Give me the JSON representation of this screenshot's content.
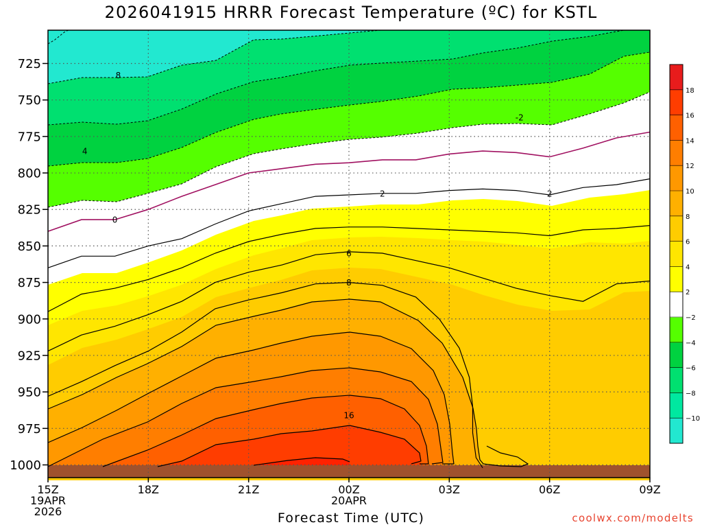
{
  "title": "2026041915 HRRR Forecast Temperature (ºC) for KSTL",
  "credit": "coolwx.com/modelts",
  "chart_data": {
    "type": "heatmap",
    "title": "2026041915 HRRR Forecast Temperature (ºC) for KSTL",
    "xlabel": "Forecast Time (UTC)",
    "ylabel": "",
    "xlim": [
      0,
      18
    ],
    "ylim": [
      1010,
      700
    ],
    "grid": true,
    "x_ticks": [
      {
        "x": 0,
        "lines": [
          "15Z",
          "19APR",
          "2026"
        ]
      },
      {
        "x": 3,
        "lines": [
          "18Z"
        ]
      },
      {
        "x": 6,
        "lines": [
          "21Z"
        ]
      },
      {
        "x": 9,
        "lines": [
          "00Z",
          "20APR"
        ]
      },
      {
        "x": 12,
        "lines": [
          "03Z"
        ]
      },
      {
        "x": 15,
        "lines": [
          "06Z"
        ]
      },
      {
        "x": 18,
        "lines": [
          "09Z"
        ]
      }
    ],
    "y_ticks": [
      "725",
      "750",
      "775",
      "800",
      "825",
      "850",
      "875",
      "900",
      "925",
      "950",
      "975",
      "1000"
    ],
    "colorbar": {
      "levels": [
        -10,
        -8,
        -6,
        -4,
        -2,
        2,
        4,
        6,
        8,
        10,
        12,
        14,
        16,
        18
      ],
      "labels": [
        "−10",
        "−8",
        "−6",
        "−4",
        "−2",
        "2",
        "4",
        "6",
        "8",
        "10",
        "12",
        "14",
        "16",
        "18"
      ],
      "colors": [
        "#22e8d0",
        "#00e8a0",
        "#00e070",
        "#00d240",
        "#55ff00",
        "#ffffff",
        "#ffff00",
        "#ffe600",
        "#ffcc00",
        "#ffb000",
        "#ff9800",
        "#ff7e00",
        "#ff6000",
        "#ff3d00",
        "#e81c1c"
      ]
    },
    "surface_color": "#a0522d",
    "series": [
      {
        "name": "0",
        "dashed": false,
        "color": "#a01060",
        "x": [
          0,
          1,
          2,
          3,
          4,
          5,
          6,
          7,
          8,
          9,
          10,
          11,
          12,
          13,
          14,
          15,
          16,
          17,
          18
        ],
        "p": [
          840,
          832,
          832,
          825,
          816,
          808,
          800,
          797,
          794,
          793,
          791,
          791,
          787,
          785,
          786,
          789,
          783,
          776,
          772
        ]
      },
      {
        "name": "2",
        "dashed": false,
        "color": "#000000",
        "x": [
          0,
          1,
          2,
          3,
          4,
          5,
          6,
          7,
          8,
          9,
          10,
          11,
          12,
          13,
          14,
          15,
          16,
          17,
          18
        ],
        "p": [
          865,
          857,
          857,
          850,
          845,
          835,
          826,
          821,
          816,
          815,
          814,
          814,
          812,
          811,
          812,
          815,
          810,
          808,
          804
        ]
      },
      {
        "name": "4",
        "dashed": false,
        "color": "#000000",
        "x": [
          0,
          1,
          2,
          3,
          4,
          5,
          6,
          7,
          8,
          9,
          10,
          11,
          12,
          13,
          14,
          15,
          16,
          17,
          18
        ],
        "p": [
          895,
          883,
          879,
          873,
          865,
          855,
          847,
          842,
          838,
          837,
          837,
          838,
          839,
          840,
          841,
          843,
          839,
          838,
          836
        ]
      },
      {
        "name": "6",
        "dashed": false,
        "color": "#000000",
        "x": [
          0,
          1,
          2,
          3,
          4,
          5,
          6,
          7,
          8,
          9,
          10,
          11,
          12,
          13,
          14,
          15,
          16,
          16.5,
          17,
          18
        ],
        "p": [
          922,
          911,
          905,
          897,
          888,
          875,
          868,
          863,
          856,
          854,
          855,
          860,
          865,
          872,
          879,
          884,
          888,
          882,
          876,
          874
        ]
      },
      {
        "name": "8",
        "dashed": false,
        "color": "#000000",
        "x": [
          0,
          1,
          2,
          3,
          4,
          5,
          6,
          7,
          8,
          9,
          10,
          11,
          11.7,
          12.3,
          12.6,
          12.7,
          12.7,
          12.8,
          13
        ],
        "p": [
          953,
          943,
          932,
          922,
          909,
          893,
          887,
          882,
          876,
          875,
          877,
          885,
          900,
          920,
          940,
          960,
          978,
          995,
          1002
        ]
      }
    ],
    "contour_labels": [
      {
        "text": "8",
        "x": 2.1,
        "p": 733
      },
      {
        "text": "4",
        "x": 1.1,
        "p": 785
      },
      {
        "text": "0",
        "x": 2.0,
        "p": 832
      },
      {
        "text": "2",
        "x": 10.0,
        "p": 814
      },
      {
        "text": "2",
        "x": 15.0,
        "p": 814
      },
      {
        "text": "-2",
        "x": 14.1,
        "p": 762
      },
      {
        "text": "6",
        "x": 9.0,
        "p": 855
      },
      {
        "text": "8",
        "x": 9.0,
        "p": 875
      },
      {
        "text": "16",
        "x": 9.0,
        "p": 966
      }
    ]
  }
}
